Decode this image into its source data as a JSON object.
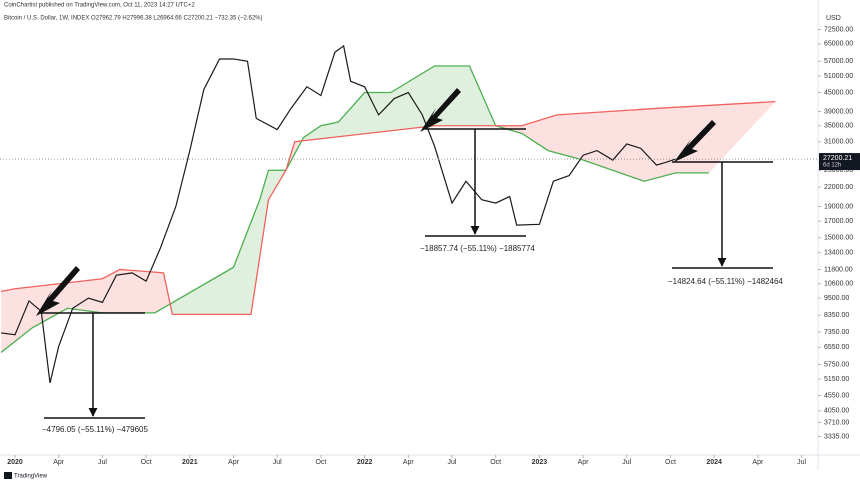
{
  "header": {
    "publisher": "CoinChartist published on TradingView.com, Oct 11, 2023 14:27 UTC+2",
    "symbol": "Bitcoin / U.S. Dollar, 1W, INDEX  O27962.79 H27996.38 L26964.66 C27200.21 −732.35 (−2.62%)",
    "currency": "USD",
    "brand": "TradingView"
  },
  "chart_data": {
    "type": "line",
    "log_scale": true,
    "grid": false,
    "xlim": [
      2019.914,
      2024.594
    ],
    "ylim": [
      2900,
      84000
    ],
    "xticks": [
      2020,
      {
        "value": 2020.25,
        "label": "Apr"
      },
      {
        "value": 2020.5,
        "label": "Jul"
      },
      {
        "value": 2020.75,
        "label": "Oct"
      },
      2021,
      {
        "value": 2021.25,
        "label": "Apr"
      },
      {
        "value": 2021.5,
        "label": "Jul"
      },
      {
        "value": 2021.75,
        "label": "Oct"
      },
      2022,
      {
        "value": 2022.25,
        "label": "Apr"
      },
      {
        "value": 2022.5,
        "label": "Jul"
      },
      {
        "value": 2022.75,
        "label": "Oct"
      },
      2023,
      {
        "value": 2023.25,
        "label": "Apr"
      },
      {
        "value": 2023.5,
        "label": "Jul"
      },
      {
        "value": 2023.75,
        "label": "Oct"
      },
      2024,
      {
        "value": 2024.25,
        "label": "Apr"
      },
      {
        "value": 2024.5,
        "label": "Jul"
      }
    ],
    "yticks": [
      {
        "value": 72500,
        "label": "72500.00"
      },
      {
        "value": 65000,
        "label": "65000.00"
      },
      {
        "value": 57000,
        "label": "57000.00"
      },
      {
        "value": 51000,
        "label": "51000.00"
      },
      {
        "value": 45000,
        "label": "45000.00"
      },
      {
        "value": 39000,
        "label": "39000.00"
      },
      {
        "value": 35000,
        "label": "35000.00"
      },
      {
        "value": 31000,
        "label": "31000.00"
      },
      {
        "value": 25000,
        "label": "25000.00"
      },
      {
        "value": 22000,
        "label": "22000.00"
      },
      {
        "value": 19000,
        "label": "19000.00"
      },
      {
        "value": 17000,
        "label": "17000.00"
      },
      {
        "value": 15000,
        "label": "15000.00"
      },
      {
        "value": 13400,
        "label": "13400.00"
      },
      {
        "value": 11800,
        "label": "11800.00"
      },
      {
        "value": 10600,
        "label": "10600.00"
      },
      {
        "value": 9500,
        "label": "9500.00"
      },
      {
        "value": 8350,
        "label": "8350.00"
      },
      {
        "value": 7350,
        "label": "7350.00"
      },
      {
        "value": 6550,
        "label": "6550.00"
      },
      {
        "value": 5750,
        "label": "5750.00"
      },
      {
        "value": 5150,
        "label": "5150.00"
      },
      {
        "value": 4550,
        "label": "4550.00"
      },
      {
        "value": 4050,
        "label": "4050.00"
      },
      {
        "value": 3710,
        "label": "3710.00"
      },
      {
        "value": 3335,
        "label": "3335.00"
      }
    ],
    "last_price": 27200.21,
    "countdown": "6d 12h",
    "cloud_fill": {
      "above": "#dff0df",
      "below": "#fde0e0"
    },
    "series": [
      {
        "color": "#1a1a1a",
        "x": [
          2019.92,
          2020.0,
          2020.08,
          2020.15,
          2020.2,
          2020.25,
          2020.33,
          2020.42,
          2020.5,
          2020.58,
          2020.67,
          2020.75,
          2020.83,
          2020.92,
          2021.0,
          2021.08,
          2021.17,
          2021.25,
          2021.33,
          2021.38,
          2021.5,
          2021.58,
          2021.67,
          2021.75,
          2021.83,
          2021.88,
          2021.92,
          2022.0,
          2022.08,
          2022.17,
          2022.25,
          2022.33,
          2022.4,
          2022.5,
          2022.58,
          2022.67,
          2022.75,
          2022.83,
          2022.87,
          2023.0,
          2023.08,
          2023.17,
          2023.25,
          2023.33,
          2023.42,
          2023.5,
          2023.58,
          2023.67,
          2023.72,
          2023.78
        ],
        "values": [
          7300,
          7200,
          9300,
          8600,
          5000,
          6600,
          8800,
          9500,
          9200,
          11300,
          11500,
          10800,
          13800,
          19000,
          29000,
          46000,
          58000,
          58000,
          57000,
          37000,
          34000,
          40000,
          47000,
          44000,
          61000,
          64000,
          49000,
          47000,
          38000,
          43000,
          45000,
          38000,
          30000,
          19500,
          23000,
          20000,
          19500,
          20500,
          16500,
          16600,
          23000,
          24000,
          28000,
          29000,
          27000,
          30500,
          29500,
          26000,
          26500,
          27200.21
        ]
      },
      {
        "color": "#4caf50",
        "x": [
          2019.92,
          2020.1,
          2020.3,
          2020.5,
          2020.8,
          2021.25,
          2021.4,
          2021.45,
          2021.55,
          2021.65,
          2021.75,
          2021.85,
          2022.0,
          2022.15,
          2022.4,
          2022.6,
          2022.75,
          2022.9,
          2023.05,
          2023.25,
          2023.6,
          2023.78,
          2023.97
        ],
        "values": [
          6300,
          7600,
          8800,
          8500,
          8500,
          12000,
          20000,
          25000,
          25000,
          32000,
          35000,
          36000,
          45000,
          45000,
          55000,
          55000,
          35000,
          33000,
          29000,
          27000,
          23000,
          24500,
          24500
        ]
      },
      {
        "color": "#f0625d",
        "x": [
          2019.92,
          2020.0,
          2020.5,
          2020.6,
          2020.85,
          2020.9,
          2021.35,
          2021.45,
          2021.55,
          2021.6,
          2022.4,
          2022.9,
          2023.1,
          2023.7,
          2024.35
        ],
        "values": [
          10000,
          10200,
          11000,
          11800,
          11500,
          8400,
          8400,
          20000,
          25000,
          31000,
          35000,
          35000,
          38000,
          40000,
          42000
        ]
      }
    ],
    "annotations": [
      "−4796.05 (−55.11%) −479605",
      "−18857.74 (−55.11%) −1885774",
      "−14824.64 (−55.11%) −1482464"
    ]
  }
}
